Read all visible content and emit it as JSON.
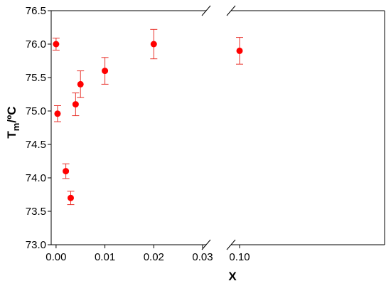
{
  "chart_data": {
    "type": "scatter",
    "xlabel": "X",
    "ylabel": "T",
    "ylabel_subscript": "m",
    "ylabel_unit": "/ºC",
    "ylim": [
      73.0,
      76.5
    ],
    "xlim": [
      -0.001,
      0.105
    ],
    "axis_break": {
      "axis": "x",
      "between": [
        0.03,
        0.1
      ]
    },
    "y_ticks": [
      73.0,
      73.5,
      74.0,
      74.5,
      75.0,
      75.5,
      76.0,
      76.5
    ],
    "y_tick_labels": [
      "73.0",
      "73.5",
      "74.0",
      "74.5",
      "75.0",
      "75.5",
      "76.0",
      "76.5"
    ],
    "x_ticks": [
      0.0,
      0.01,
      0.02,
      0.03,
      0.1
    ],
    "x_tick_labels": [
      "0.00",
      "0.01",
      "0.02",
      "0.03",
      "0.10"
    ],
    "marker_color": "#ff0000",
    "errorbar_color": "#e8322b",
    "points": [
      {
        "x": 0.0,
        "y": 76.0,
        "err": 0.09
      },
      {
        "x": 0.0003,
        "y": 74.96,
        "err": 0.12
      },
      {
        "x": 0.002,
        "y": 74.1,
        "err": 0.11
      },
      {
        "x": 0.003,
        "y": 73.7,
        "err": 0.1
      },
      {
        "x": 0.004,
        "y": 75.1,
        "err": 0.17
      },
      {
        "x": 0.005,
        "y": 75.4,
        "err": 0.2
      },
      {
        "x": 0.01,
        "y": 75.6,
        "err": 0.2
      },
      {
        "x": 0.02,
        "y": 76.0,
        "err": 0.22
      },
      {
        "x": 0.1,
        "y": 75.9,
        "err": 0.2
      }
    ]
  }
}
